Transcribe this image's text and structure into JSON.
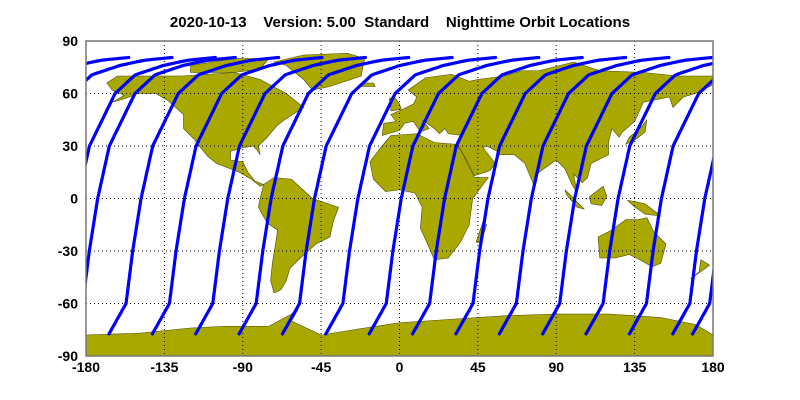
{
  "title": "2020-10-13    Version: 5.00  Standard    Nighttime Orbit Locations",
  "map": {
    "projection": "equirectangular",
    "land_color": "#a9a800",
    "coast_color": "#4a4a00",
    "track_color": "#0000ff",
    "grid": true,
    "lon_range": [
      -180,
      180
    ],
    "lat_range": [
      -90,
      90
    ],
    "x_ticks": [
      "-180",
      "-135",
      "-90",
      "-45",
      "0",
      "45",
      "90",
      "135",
      "180"
    ],
    "y_ticks": [
      "90",
      "60",
      "30",
      "0",
      "-30",
      "-60",
      "-90"
    ],
    "orbit_tracks": {
      "equator_crossing_lons": [
        -173.3,
        -148.4,
        -123.5,
        -98.6,
        -73.7,
        -48.8,
        -23.9,
        1.0,
        25.9,
        50.8,
        75.7,
        100.6,
        125.5,
        150.4,
        175.3
      ],
      "lat_start": -77.4,
      "lat_end": 81
    }
  }
}
